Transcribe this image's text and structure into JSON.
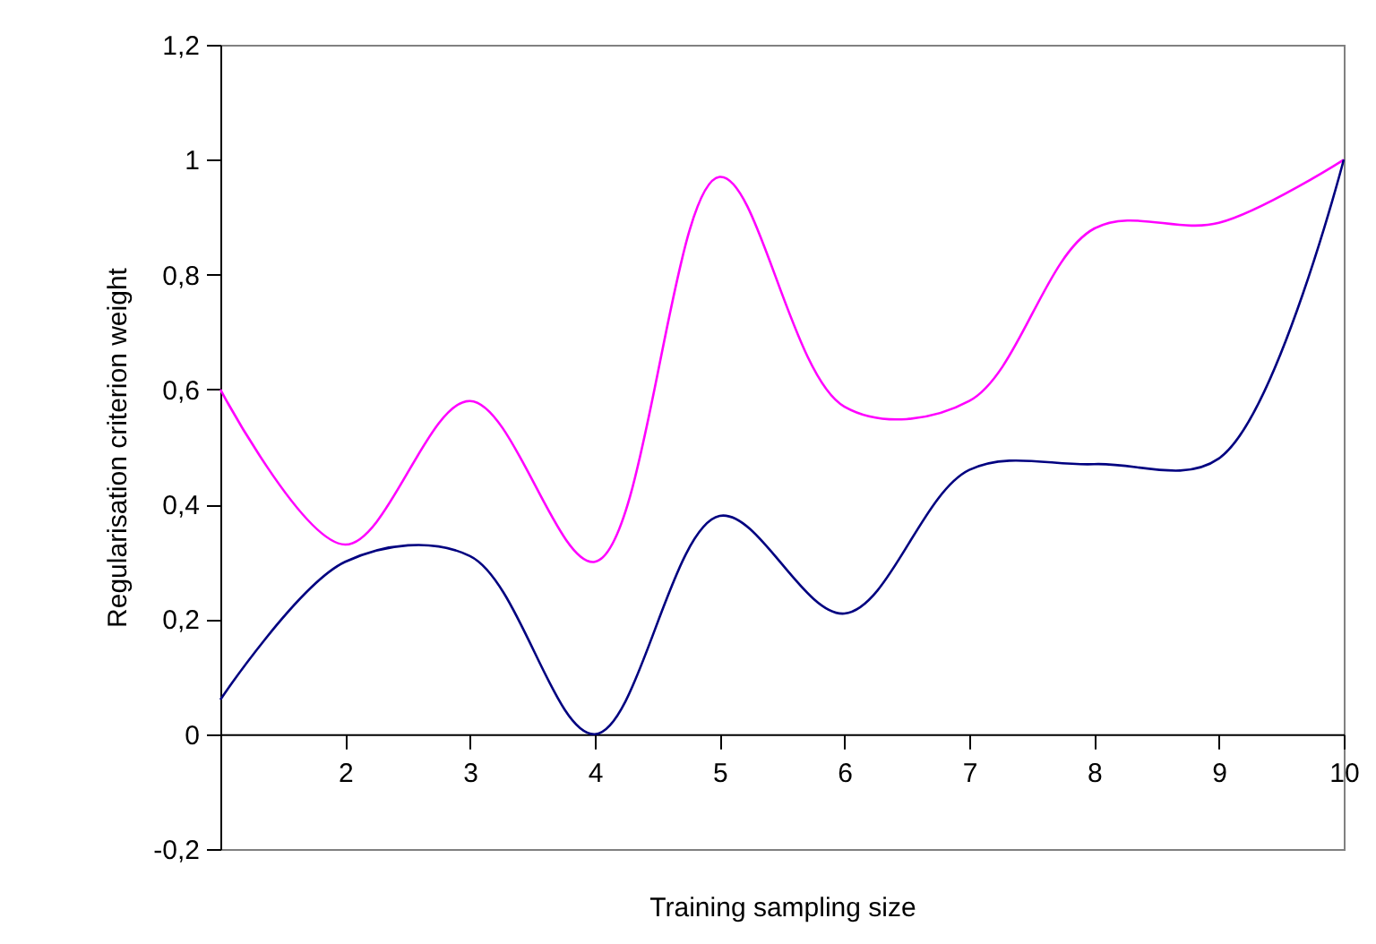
{
  "chart_data": {
    "type": "line",
    "xlabel": "Training sampling size",
    "ylabel": "Regularisation criterion weight",
    "x": [
      1,
      2,
      3,
      4,
      5,
      6,
      7,
      8,
      9,
      10
    ],
    "series": [
      {
        "color": "#ff00ff",
        "values": [
          0.6,
          0.33,
          0.58,
          0.3,
          0.97,
          0.57,
          0.58,
          0.88,
          0.89,
          1.0
        ]
      },
      {
        "color": "#000080",
        "values": [
          0.06,
          0.3,
          0.31,
          0.0,
          0.38,
          0.21,
          0.46,
          0.47,
          0.48,
          1.0
        ]
      }
    ],
    "xlim": [
      1,
      10
    ],
    "xticks": [
      2,
      3,
      4,
      5,
      6,
      7,
      8,
      9,
      10
    ],
    "ylim": [
      -0.2,
      1.2
    ],
    "yticks": [
      {
        "value": -0.2,
        "label": "-0,2"
      },
      {
        "value": 0,
        "label": "0"
      },
      {
        "value": 0.2,
        "label": "0,2"
      },
      {
        "value": 0.4,
        "label": "0,4"
      },
      {
        "value": 0.6,
        "label": "0,6"
      },
      {
        "value": 0.8,
        "label": "0,8"
      },
      {
        "value": 1,
        "label": "1"
      },
      {
        "value": 1.2,
        "label": "1,2"
      }
    ]
  }
}
